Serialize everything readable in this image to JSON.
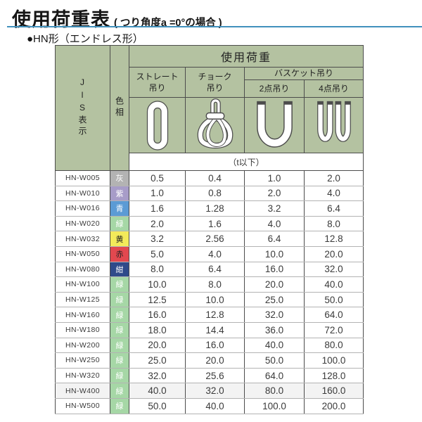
{
  "page": {
    "title": "使用荷重表",
    "title_note": "( つり角度a =0°の場合 )",
    "section_heading": "●HN形（エンドレス形）",
    "rule_color": "#4191bd"
  },
  "table": {
    "corner": {
      "jis": "JIS表示",
      "color": "色相"
    },
    "load_group_label": "使用荷重",
    "col_straight": "ストレート\n吊り",
    "col_choke": "チョーク\n吊り",
    "basket_group_label": "バスケット吊り",
    "col_basket2": "2点吊り",
    "col_basket4": "4点吊り",
    "unit_label": "（t以下）",
    "icon_names": [
      "straight-sling-icon",
      "choke-sling-icon",
      "basket-2point-sling-icon",
      "basket-4point-sling-icon"
    ],
    "colors": {
      "header_bg": "#b4c2a1",
      "grid_dark": "#4c4c4c",
      "grid_light": "#b3b3b3"
    },
    "swatches": {
      "灰": {
        "bg": "#b3b3b3",
        "fg": "#ffffff"
      },
      "紫": {
        "bg": "#a79cc8",
        "fg": "#ffffff"
      },
      "青": {
        "bg": "#5b9bd5",
        "fg": "#ffffff"
      },
      "緑": {
        "bg": "#a6d7a6",
        "fg": "#ffffff"
      },
      "黄": {
        "bg": "#f3ea5a",
        "fg": "#222222"
      },
      "赤": {
        "bg": "#e2484f",
        "fg": "#222222"
      },
      "紺": {
        "bg": "#2f4a8a",
        "fg": "#ffffff"
      }
    },
    "rows": [
      {
        "jis": "HN-W005",
        "color": "灰",
        "straight": "0.5",
        "choke": "0.4",
        "basket2": "1.0",
        "basket4": "2.0"
      },
      {
        "jis": "HN-W010",
        "color": "紫",
        "straight": "1.0",
        "choke": "0.8",
        "basket2": "2.0",
        "basket4": "4.0"
      },
      {
        "jis": "HN-W016",
        "color": "青",
        "straight": "1.6",
        "choke": "1.28",
        "basket2": "3.2",
        "basket4": "6.4"
      },
      {
        "jis": "HN-W020",
        "color": "緑",
        "straight": "2.0",
        "choke": "1.6",
        "basket2": "4.0",
        "basket4": "8.0"
      },
      {
        "jis": "HN-W032",
        "color": "黄",
        "straight": "3.2",
        "choke": "2.56",
        "basket2": "6.4",
        "basket4": "12.8"
      },
      {
        "jis": "HN-W050",
        "color": "赤",
        "straight": "5.0",
        "choke": "4.0",
        "basket2": "10.0",
        "basket4": "20.0"
      },
      {
        "jis": "HN-W080",
        "color": "紺",
        "straight": "8.0",
        "choke": "6.4",
        "basket2": "16.0",
        "basket4": "32.0"
      },
      {
        "jis": "HN-W100",
        "color": "緑",
        "straight": "10.0",
        "choke": "8.0",
        "basket2": "20.0",
        "basket4": "40.0"
      },
      {
        "jis": "HN-W125",
        "color": "緑",
        "straight": "12.5",
        "choke": "10.0",
        "basket2": "25.0",
        "basket4": "50.0"
      },
      {
        "jis": "HN-W160",
        "color": "緑",
        "straight": "16.0",
        "choke": "12.8",
        "basket2": "32.0",
        "basket4": "64.0"
      },
      {
        "jis": "HN-W180",
        "color": "緑",
        "straight": "18.0",
        "choke": "14.4",
        "basket2": "36.0",
        "basket4": "72.0"
      },
      {
        "jis": "HN-W200",
        "color": "緑",
        "straight": "20.0",
        "choke": "16.0",
        "basket2": "40.0",
        "basket4": "80.0"
      },
      {
        "jis": "HN-W250",
        "color": "緑",
        "straight": "25.0",
        "choke": "20.0",
        "basket2": "50.0",
        "basket4": "100.0"
      },
      {
        "jis": "HN-W320",
        "color": "緑",
        "straight": "32.0",
        "choke": "25.6",
        "basket2": "64.0",
        "basket4": "128.0"
      },
      {
        "jis": "HN-W400",
        "color": "緑",
        "straight": "40.0",
        "choke": "32.0",
        "basket2": "80.0",
        "basket4": "160.0",
        "shaded": true
      },
      {
        "jis": "HN-W500",
        "color": "緑",
        "straight": "50.0",
        "choke": "40.0",
        "basket2": "100.0",
        "basket4": "200.0"
      }
    ]
  }
}
